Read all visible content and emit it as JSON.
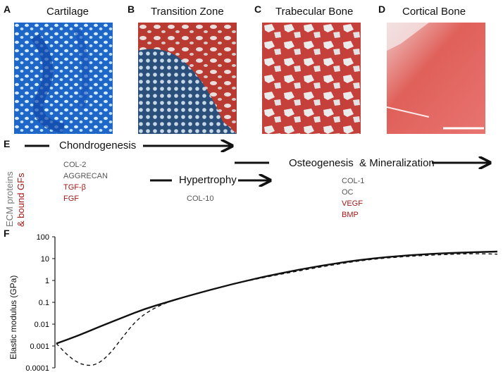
{
  "panels": [
    {
      "letter": "A",
      "title": "Cartilage"
    },
    {
      "letter": "B",
      "title": "Transition Zone"
    },
    {
      "letter": "C",
      "title": "Trabecular Bone"
    },
    {
      "letter": "D",
      "title": "Cortical Bone"
    }
  ],
  "section_e": {
    "letter": "E",
    "side_label_1": "ECM proteins",
    "side_label_2": "& bound GFs",
    "chondrogenesis": "Chondrogenesis",
    "hypertrophy": "Hypertrophy",
    "osteogenesis": "Osteogenesis  & Mineralization",
    "chondro_markers": [
      "COL-2",
      "AGGRECAN"
    ],
    "chondro_factors": [
      "TGF-β",
      "FGF"
    ],
    "hyper_markers": [
      "COL-10"
    ],
    "osteo_markers": [
      "COL-1",
      "OC"
    ],
    "osteo_factors": [
      "VEGF",
      "BMP"
    ]
  },
  "chart_data": {
    "type": "line",
    "letter": "F",
    "ylabel": "Elastic modulus (GPa)",
    "xlabel": "",
    "yscale": "log",
    "ylim": [
      0.0001,
      100
    ],
    "yticks": [
      "100",
      "10",
      "1",
      "0.1",
      "0.01",
      "0.001",
      "0.0001"
    ],
    "xlim": [
      0,
      1
    ],
    "grid": false,
    "series": [
      {
        "style": "solid",
        "x": [
          0,
          0.05,
          0.1,
          0.15,
          0.2,
          0.25,
          0.3,
          0.4,
          0.5,
          0.6,
          0.7,
          0.8,
          0.9,
          1.0
        ],
        "y": [
          0.0013,
          0.003,
          0.008,
          0.02,
          0.05,
          0.1,
          0.2,
          0.7,
          2.0,
          4.8,
          9.5,
          14.5,
          18.5,
          21
        ]
      },
      {
        "style": "dashed",
        "x": [
          0,
          0.03,
          0.06,
          0.09,
          0.12,
          0.15,
          0.18,
          0.21,
          0.25,
          0.3,
          0.4,
          0.5,
          0.6,
          0.7,
          0.8,
          0.9,
          0.95,
          1.0
        ],
        "y": [
          0.0013,
          0.0003,
          0.00013,
          0.00013,
          0.0004,
          0.0025,
          0.014,
          0.04,
          0.1,
          0.2,
          0.7,
          1.8,
          4.2,
          8.8,
          13,
          16,
          17,
          16
        ]
      }
    ]
  }
}
